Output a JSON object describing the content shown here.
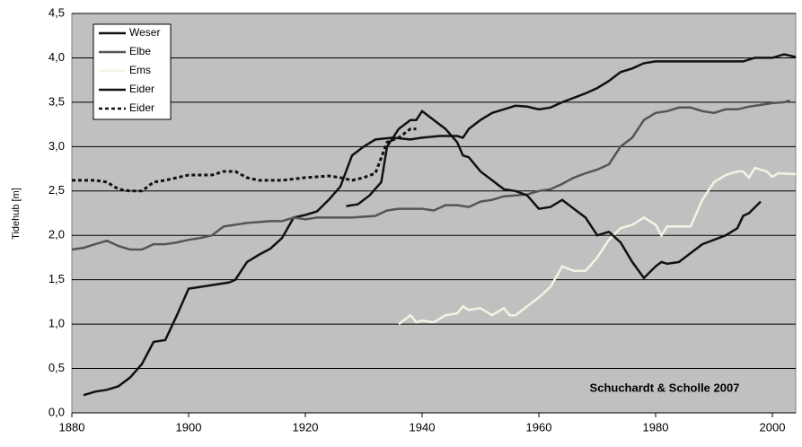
{
  "chart_data": {
    "type": "line",
    "y_label": "Tidehub [m]",
    "annotation": "Schuchardt & Scholle 2007",
    "xlim": [
      1880,
      2004
    ],
    "xticks": [
      1880,
      1900,
      1920,
      1940,
      1960,
      1980,
      2000
    ],
    "ylim": [
      0,
      4.5
    ],
    "yticks": [
      {
        "value": 0,
        "label": "0,0"
      },
      {
        "value": 0.5,
        "label": "0,5"
      },
      {
        "value": 1,
        "label": "1,0"
      },
      {
        "value": 1.5,
        "label": "1,5"
      },
      {
        "value": 2,
        "label": "2,0"
      },
      {
        "value": 2.5,
        "label": "2,5"
      },
      {
        "value": 3,
        "label": "3,0"
      },
      {
        "value": 3.5,
        "label": "3,5"
      },
      {
        "value": 4,
        "label": "4,0"
      },
      {
        "value": 4.5,
        "label": "4,5"
      }
    ],
    "grid": true,
    "legend": "upper left",
    "series": [
      {
        "name": "Weser",
        "color": "#111111",
        "dash": false,
        "x": [
          1882,
          1884,
          1886,
          1888,
          1890,
          1892,
          1894,
          1896,
          1898,
          1900,
          1905,
          1907,
          1908,
          1910,
          1912,
          1914,
          1916,
          1918,
          1920,
          1922,
          1924,
          1926,
          1928,
          1930,
          1932,
          1935,
          1938,
          1940,
          1943,
          1946,
          1947,
          1948,
          1950,
          1952,
          1954,
          1956,
          1958,
          1960,
          1962,
          1964,
          1966,
          1968,
          1970,
          1972,
          1974,
          1976,
          1978,
          1980,
          1985,
          1990,
          1995,
          1997,
          2000,
          2002,
          2004
        ],
        "values": [
          0.2,
          0.24,
          0.26,
          0.3,
          0.4,
          0.55,
          0.8,
          0.82,
          1.1,
          1.4,
          1.45,
          1.47,
          1.5,
          1.7,
          1.78,
          1.85,
          1.97,
          2.2,
          2.23,
          2.27,
          2.4,
          2.55,
          2.9,
          3.0,
          3.08,
          3.1,
          3.08,
          3.1,
          3.12,
          3.12,
          3.1,
          3.2,
          3.3,
          3.38,
          3.42,
          3.46,
          3.45,
          3.42,
          3.44,
          3.5,
          3.55,
          3.6,
          3.66,
          3.74,
          3.84,
          3.88,
          3.94,
          3.96,
          3.96,
          3.96,
          3.96,
          4.0,
          4.0,
          4.04,
          4.01
        ]
      },
      {
        "name": "Elbe",
        "color": "#555555",
        "dash": false,
        "x": [
          1880,
          1882,
          1884,
          1886,
          1888,
          1890,
          1892,
          1894,
          1896,
          1898,
          1900,
          1902,
          1904,
          1906,
          1908,
          1910,
          1914,
          1916,
          1918,
          1920,
          1922,
          1926,
          1928,
          1932,
          1934,
          1936,
          1940,
          1942,
          1944,
          1946,
          1948,
          1950,
          1952,
          1954,
          1958,
          1960,
          1962,
          1964,
          1966,
          1968,
          1970,
          1972,
          1974,
          1976,
          1978,
          1980,
          1982,
          1984,
          1986,
          1988,
          1990,
          1992,
          1994,
          1996,
          1998,
          2000,
          2002,
          2003
        ],
        "values": [
          1.84,
          1.86,
          1.9,
          1.94,
          1.88,
          1.84,
          1.84,
          1.9,
          1.9,
          1.92,
          1.95,
          1.97,
          2.0,
          2.1,
          2.12,
          2.14,
          2.16,
          2.16,
          2.2,
          2.18,
          2.2,
          2.2,
          2.2,
          2.22,
          2.28,
          2.3,
          2.3,
          2.28,
          2.34,
          2.34,
          2.32,
          2.38,
          2.4,
          2.44,
          2.46,
          2.5,
          2.52,
          2.58,
          2.65,
          2.7,
          2.74,
          2.8,
          3.0,
          3.1,
          3.3,
          3.38,
          3.4,
          3.44,
          3.44,
          3.4,
          3.38,
          3.42,
          3.42,
          3.45,
          3.47,
          3.49,
          3.5,
          3.52
        ]
      },
      {
        "name": "Ems",
        "color": "#f4f4e4",
        "dash": false,
        "x": [
          1936,
          1938,
          1939,
          1940,
          1942,
          1944,
          1946,
          1947,
          1948,
          1950,
          1952,
          1954,
          1955,
          1956,
          1958,
          1960,
          1962,
          1964,
          1966,
          1968,
          1970,
          1972,
          1974,
          1976,
          1978,
          1980,
          1981,
          1982,
          1986,
          1988,
          1990,
          1992,
          1994,
          1995,
          1996,
          1997,
          1999,
          2000,
          2001,
          2004
        ],
        "values": [
          1.0,
          1.1,
          1.02,
          1.04,
          1.02,
          1.1,
          1.12,
          1.2,
          1.16,
          1.18,
          1.1,
          1.18,
          1.1,
          1.1,
          1.2,
          1.3,
          1.42,
          1.65,
          1.6,
          1.6,
          1.75,
          1.95,
          2.08,
          2.12,
          2.2,
          2.12,
          2.0,
          2.1,
          2.1,
          2.4,
          2.6,
          2.68,
          2.72,
          2.72,
          2.65,
          2.76,
          2.72,
          2.66,
          2.7,
          2.69
        ]
      },
      {
        "name": "Eider",
        "color": "#111111",
        "dash": false,
        "x": [
          1927,
          1929,
          1931,
          1933,
          1934,
          1936,
          1938,
          1939,
          1940,
          1942,
          1944,
          1946,
          1947,
          1948,
          1950,
          1952,
          1954,
          1956,
          1958,
          1960,
          1962,
          1964,
          1966,
          1968,
          1970,
          1972,
          1974,
          1976,
          1978,
          1980,
          1981,
          1982,
          1984,
          1986,
          1988,
          1990,
          1992,
          1994,
          1995,
          1996,
          1998
        ],
        "values": [
          2.33,
          2.35,
          2.45,
          2.6,
          3.0,
          3.2,
          3.3,
          3.3,
          3.4,
          3.3,
          3.2,
          3.05,
          2.9,
          2.88,
          2.72,
          2.62,
          2.52,
          2.5,
          2.45,
          2.3,
          2.32,
          2.4,
          2.3,
          2.2,
          2.0,
          2.04,
          1.92,
          1.7,
          1.52,
          1.65,
          1.7,
          1.68,
          1.7,
          1.8,
          1.9,
          1.95,
          2.0,
          2.08,
          2.22,
          2.25,
          2.38
        ]
      },
      {
        "name": "Eider",
        "color": "#111111",
        "dash": true,
        "x": [
          1880,
          1884,
          1886,
          1888,
          1890,
          1892,
          1894,
          1896,
          1898,
          1900,
          1904,
          1906,
          1908,
          1910,
          1912,
          1916,
          1920,
          1924,
          1926,
          1928,
          1930,
          1932,
          1934,
          1936,
          1938,
          1939
        ],
        "values": [
          2.62,
          2.62,
          2.6,
          2.52,
          2.5,
          2.5,
          2.6,
          2.62,
          2.65,
          2.68,
          2.68,
          2.72,
          2.72,
          2.65,
          2.62,
          2.62,
          2.65,
          2.67,
          2.65,
          2.62,
          2.65,
          2.7,
          3.05,
          3.1,
          3.2,
          3.2
        ]
      }
    ]
  }
}
